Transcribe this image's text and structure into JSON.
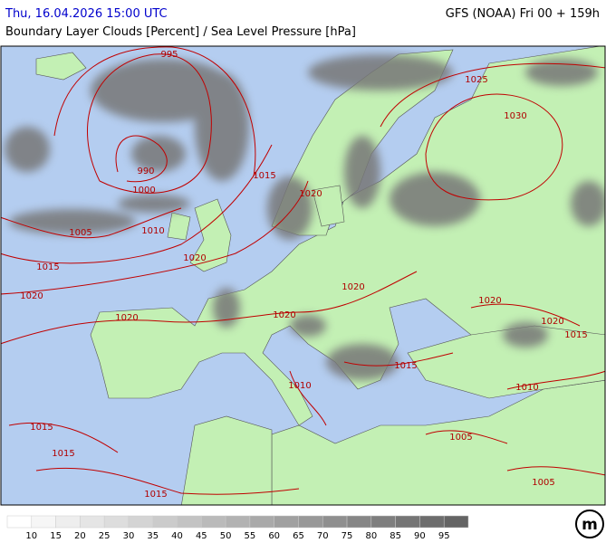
{
  "header": {
    "datetime": "Thu, 16.04.2026 15:00 UTC",
    "model": "GFS (NOAA) Fri 00 + 159h",
    "title": "Boundary Layer Clouds [Percent] / Sea Level Pressure [hPa]"
  },
  "map": {
    "isobar_labels": [
      995,
      990,
      1000,
      1005,
      1010,
      1015,
      1015,
      1020,
      1020,
      1020,
      1020,
      1025,
      1030,
      1020,
      1020,
      1020,
      1020,
      1015,
      1015,
      1010,
      1010,
      1005,
      1005,
      1015,
      1015,
      1015
    ]
  },
  "legend": {
    "labels": [
      10,
      15,
      20,
      25,
      30,
      35,
      40,
      45,
      50,
      55,
      60,
      65,
      70,
      75,
      80,
      85,
      90,
      95
    ]
  },
  "logo": "m"
}
